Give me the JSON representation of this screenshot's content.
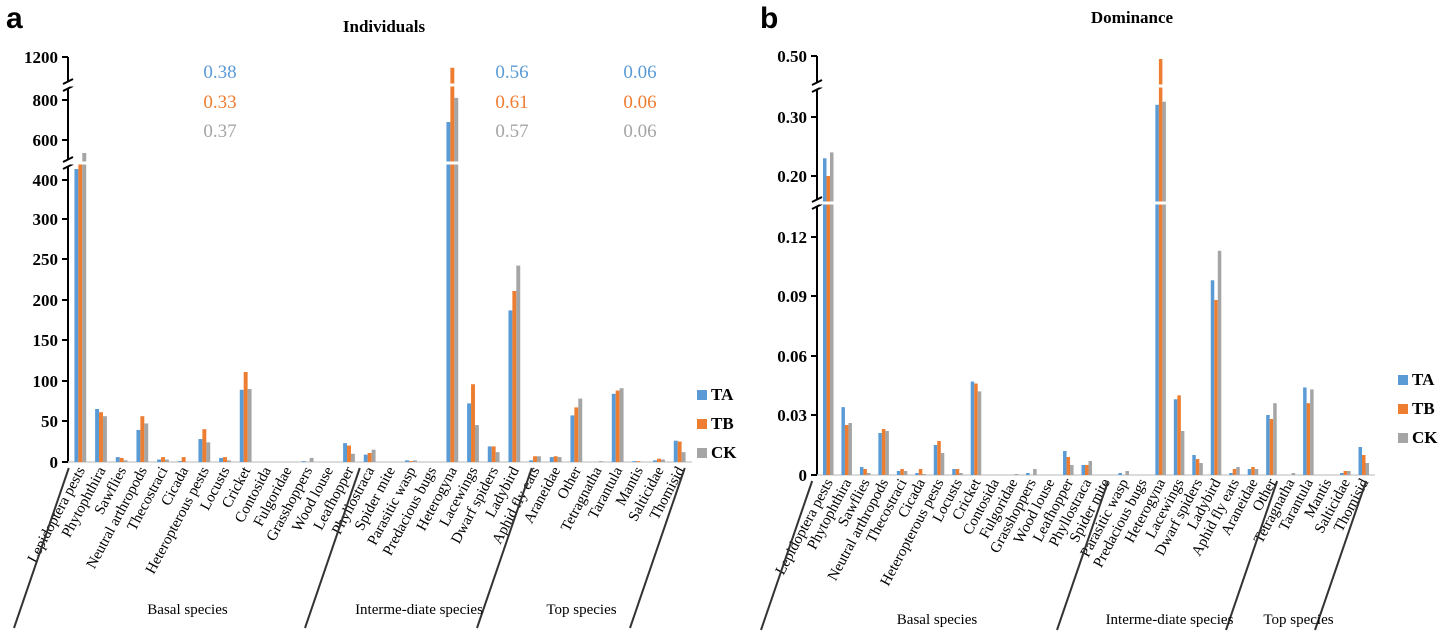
{
  "figure": {
    "series_colors": {
      "TA": "#5B9BD5",
      "TB": "#ED7D31",
      "CK": "#A5A5A5"
    }
  },
  "chart_data": [
    {
      "panel": "a",
      "type": "bar",
      "title": "Individuals",
      "xlabel": "",
      "ylabel": "",
      "ylim": [
        0,
        1200
      ],
      "yticks": [
        0,
        50,
        100,
        150,
        200,
        250,
        300,
        400,
        600,
        800,
        1200
      ],
      "ytick_labels": [
        "0",
        "50",
        "100",
        "150",
        "200",
        "250",
        "300",
        "400",
        "600",
        "800",
        "1200"
      ],
      "axis_breaks": [
        [
          300,
          400
        ],
        [
          800,
          1200
        ]
      ],
      "legend": [
        "TA",
        "TB",
        "CK"
      ],
      "legend_position": "right",
      "categories": [
        "Lepidoptera pests",
        "Phytophthira",
        "Sawflies",
        "Neutral arthropods",
        "Thecostraci",
        "Cicada",
        "Heteropterous pests",
        "Locusts",
        "Cricket",
        "Contosida",
        "Fulgoridae",
        "Grasshoppers",
        "Wood louse",
        "Leafhopper",
        "Phyllostraca",
        "Spider mite",
        "Parasitic wasp",
        "Predacious bugs",
        "Heterogyna",
        "Lacewings",
        "Dwarf spiders",
        "Ladybird",
        "Aphid fly eats",
        "Araneidae",
        "Other",
        "Tetragnatha",
        "Tarantula",
        "Mantis",
        "Salticidae",
        "Thomisid"
      ],
      "groups": [
        {
          "label": "Basal species",
          "start": 0,
          "end": 15
        },
        {
          "label": "Interme-diate species",
          "start": 16,
          "end": 24
        },
        {
          "label": "Top species",
          "start": 25,
          "end": 29
        }
      ],
      "series": [
        {
          "name": "TA",
          "values": [
            455,
            65,
            6,
            39,
            3,
            1,
            28,
            5,
            89,
            0,
            0,
            1,
            0,
            23,
            9,
            0,
            2,
            0,
            690,
            72,
            19,
            187,
            2,
            6,
            57,
            0,
            84,
            1,
            2,
            26
          ]
        },
        {
          "name": "TB",
          "values": [
            480,
            61,
            5,
            56,
            6,
            6,
            40,
            6,
            111,
            0,
            0,
            0,
            0,
            20,
            11,
            0,
            1,
            0,
            1100,
            96,
            19,
            211,
            7,
            7,
            67,
            0,
            88,
            1,
            4,
            25
          ]
        },
        {
          "name": "CK",
          "values": [
            535,
            56,
            2,
            47,
            3,
            0,
            24,
            2,
            90,
            0,
            0,
            5,
            0,
            10,
            15,
            0,
            2,
            0,
            820,
            45,
            12,
            242,
            7,
            6,
            78,
            1,
            91,
            0,
            3,
            12
          ]
        }
      ],
      "annotations": [
        {
          "group": "Basal species",
          "values": [
            {
              "series": "TA",
              "text": "0.38"
            },
            {
              "series": "TB",
              "text": "0.33"
            },
            {
              "series": "CK",
              "text": "0.37"
            }
          ]
        },
        {
          "group": "Interme-diate species",
          "values": [
            {
              "series": "TA",
              "text": "0.56"
            },
            {
              "series": "TB",
              "text": "0.61"
            },
            {
              "series": "CK",
              "text": "0.57"
            }
          ]
        },
        {
          "group": "Top species",
          "values": [
            {
              "series": "TA",
              "text": "0.06"
            },
            {
              "series": "TB",
              "text": "0.06"
            },
            {
              "series": "CK",
              "text": "0.06"
            }
          ]
        }
      ]
    },
    {
      "panel": "b",
      "type": "bar",
      "title": "Dominance",
      "xlabel": "",
      "ylabel": "",
      "ylim": [
        0,
        0.5
      ],
      "yticks": [
        0,
        0.03,
        0.06,
        0.09,
        0.12,
        0.2,
        0.3,
        0.5
      ],
      "ytick_labels": [
        "0",
        "0.03",
        "0.06",
        "0.09",
        "0.12",
        "0.20",
        "0.30",
        "0.50"
      ],
      "axis_breaks": [
        [
          0.12,
          0.2
        ],
        [
          0.3,
          0.5
        ]
      ],
      "legend": [
        "TA",
        "TB",
        "CK"
      ],
      "legend_position": "right",
      "categories": [
        "Lepidoptera pests",
        "Phytophthira",
        "Sawflies",
        "Neutral arthropods",
        "Thecostraci",
        "Cicada",
        "Heteropterous pests",
        "Locusts",
        "Cricket",
        "Contosida",
        "Fulgoridae",
        "Grasshoppers",
        "Wood louse",
        "Leafhopper",
        "Phyllostraca",
        "Spider mite",
        "Parasitic wasp",
        "Predacious bugs",
        "Heterogyna",
        "Lacewings",
        "Dwarf spiders",
        "Ladybird",
        "Aphid fly eats",
        "Araneidae",
        "Other",
        "Tetragnatha",
        "Tarantula",
        "Mantis",
        "Salticidae",
        "Thomisid"
      ],
      "groups": [
        {
          "label": "Basal species",
          "start": 0,
          "end": 15
        },
        {
          "label": "Interme-diate species",
          "start": 16,
          "end": 24
        },
        {
          "label": "Top species",
          "start": 25,
          "end": 29
        }
      ],
      "series": [
        {
          "name": "TA",
          "values": [
            0.23,
            0.034,
            0.004,
            0.021,
            0.002,
            0.001,
            0.015,
            0.003,
            0.047,
            0,
            0,
            0.001,
            0,
            0.012,
            0.005,
            0,
            0.001,
            0,
            0.34,
            0.038,
            0.01,
            0.098,
            0.001,
            0.003,
            0.03,
            0,
            0.044,
            0,
            0.001,
            0.014
          ]
        },
        {
          "name": "TB",
          "values": [
            0.2,
            0.025,
            0.003,
            0.023,
            0.003,
            0.003,
            0.017,
            0.003,
            0.046,
            0,
            0,
            0,
            0,
            0.009,
            0.005,
            0,
            0,
            0,
            0.49,
            0.04,
            0.008,
            0.088,
            0.003,
            0.004,
            0.028,
            0,
            0.036,
            0,
            0.002,
            0.01
          ]
        },
        {
          "name": "CK",
          "values": [
            0.24,
            0.026,
            0.001,
            0.022,
            0.002,
            0.0005,
            0.011,
            0.001,
            0.042,
            0,
            0.0005,
            0.003,
            0,
            0.005,
            0.007,
            0,
            0.002,
            0,
            0.35,
            0.022,
            0.006,
            0.113,
            0.004,
            0.003,
            0.036,
            0.001,
            0.043,
            0,
            0.002,
            0.006
          ]
        }
      ]
    }
  ]
}
